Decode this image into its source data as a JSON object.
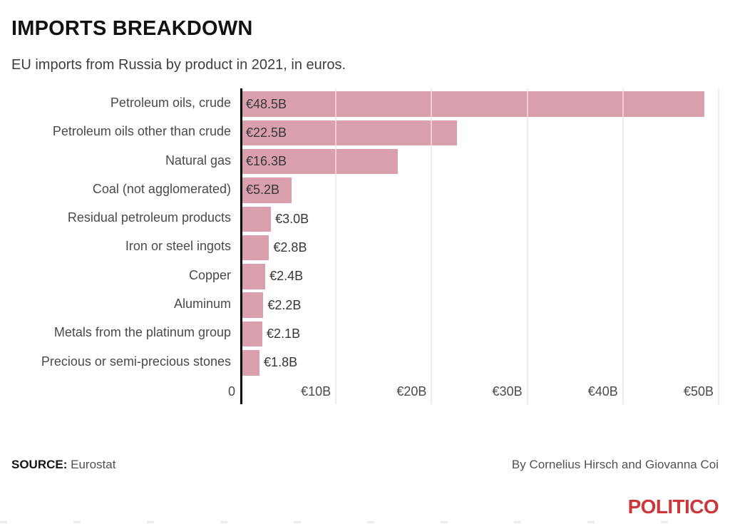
{
  "chart_data": {
    "type": "bar",
    "orientation": "horizontal",
    "title": "IMPORTS BREAKDOWN",
    "subtitle": "EU imports from Russia by product in 2021, in euros.",
    "categories": [
      "Petroleum oils, crude",
      "Petroleum oils other than crude",
      "Natural gas",
      "Coal (not agglomerated)",
      "Residual petroleum products",
      "Iron or steel ingots",
      "Copper",
      "Aluminum",
      "Metals from the platinum group",
      "Precious or semi-precious stones"
    ],
    "values": [
      48.5,
      22.5,
      16.3,
      5.2,
      3.0,
      2.8,
      2.4,
      2.2,
      2.1,
      1.8
    ],
    "value_labels": [
      "€48.5B",
      "€22.5B",
      "€16.3B",
      "€5.2B",
      "€3.0B",
      "€2.8B",
      "€2.4B",
      "€2.2B",
      "€2.1B",
      "€1.8B"
    ],
    "xlim": [
      0,
      50
    ],
    "x_ticks": [
      {
        "label": "0",
        "value": 0
      },
      {
        "label": "€10B",
        "value": 10
      },
      {
        "label": "€20B",
        "value": 20
      },
      {
        "label": "€30B",
        "value": 30
      },
      {
        "label": "€40B",
        "value": 40
      },
      {
        "label": "€50B",
        "value": 50
      }
    ],
    "gridline_values": [
      10,
      20,
      30,
      40,
      50
    ],
    "grid": true,
    "legend": false,
    "bar_color": "#d99fad"
  },
  "footer": {
    "source_label": "SOURCE:",
    "source_value": "Eurostat",
    "byline": "By Cornelius Hirsch and Giovanna Coi",
    "brand": "POLITICO",
    "brand_color": "#cc373c"
  }
}
